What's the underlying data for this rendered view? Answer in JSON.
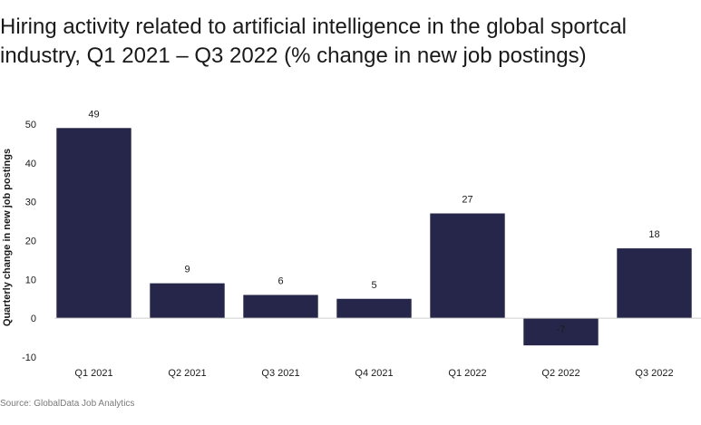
{
  "title": "Hiring activity related to artificial intelligence in the global sportcal industry, Q1 2021 – Q3 2022 (% change in new job postings)",
  "source": "Source: GlobalData Job Analytics",
  "colors": {
    "bar": "#26264a",
    "zero_line": "#cfcfcf",
    "text": "#1a1a1a",
    "source": "#7a7a7a"
  },
  "chart_data": {
    "type": "bar",
    "title": "Hiring activity related to artificial intelligence in the global sportcal industry, Q1 2021 – Q3 2022 (% change in new job postings)",
    "xlabel": "",
    "ylabel": "Quarterly change in new job postings",
    "categories": [
      "Q1 2021",
      "Q2 2021",
      "Q3 2021",
      "Q4 2021",
      "Q1 2022",
      "Q2 2022",
      "Q3 2022"
    ],
    "values": [
      49,
      9,
      6,
      5,
      27,
      -7,
      18
    ],
    "ylim": [
      -10,
      50
    ],
    "yticks": [
      -10,
      0,
      10,
      20,
      30,
      40,
      50
    ],
    "grid": false,
    "data_labels": true
  }
}
